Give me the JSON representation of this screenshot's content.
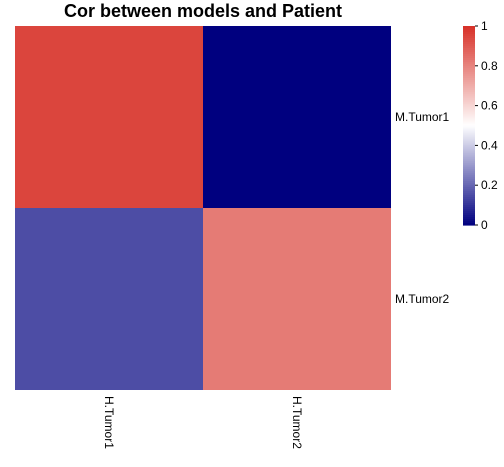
{
  "chart_data": {
    "type": "heatmap",
    "title": "Cor between models and Patient",
    "rows": [
      "M.Tumor1",
      "M.Tumor2"
    ],
    "columns": [
      "H.Tumor1",
      "H.Tumor2"
    ],
    "values": [
      [
        0.95,
        0.0
      ],
      [
        0.15,
        0.82
      ]
    ],
    "colorbar": {
      "min": 0,
      "max": 1,
      "ticks": [
        "0",
        "0.2",
        "0.4",
        "0.6",
        "0.8",
        "1"
      ],
      "tick_values": [
        0,
        0.2,
        0.4,
        0.6,
        0.8,
        1
      ],
      "colors": {
        "low": "#00007f",
        "mid": "#ffffff",
        "high": "#d73027"
      }
    },
    "legend_position": "top-right",
    "grid": false
  }
}
